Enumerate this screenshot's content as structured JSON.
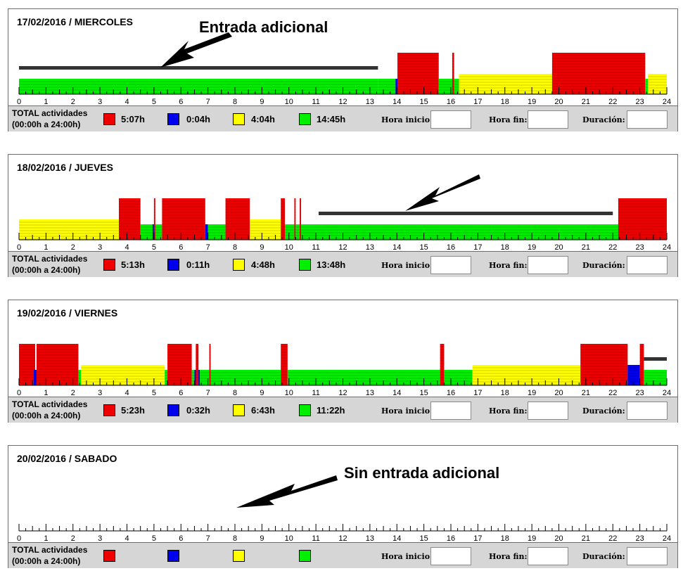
{
  "colors": {
    "red": "#ee0000",
    "blue": "#0000ee",
    "yellow": "#ffff00",
    "green": "#00ee00",
    "dark": "#333333"
  },
  "labels": {
    "total": "TOTAL actividades",
    "range": "(00:00h a 24:00h)",
    "hora_inicio": "Hora inicio:",
    "hora_fin": "Hora fin:",
    "duracion": "Duración:"
  },
  "axis_ticks": [
    "0",
    "1",
    "2",
    "3",
    "4",
    "5",
    "6",
    "7",
    "8",
    "9",
    "10",
    "11",
    "12",
    "13",
    "14",
    "15",
    "16",
    "17",
    "18",
    "19",
    "20",
    "21",
    "22",
    "23",
    "24"
  ],
  "days": [
    {
      "date": "17/02/2016 / MIERCOLES",
      "totals": {
        "red": "5:07h",
        "blue": "0:04h",
        "yellow": "4:04h",
        "green": "14:45h"
      },
      "annotation": "Entrada adicional",
      "segments": [
        {
          "color": "green",
          "start": 0,
          "end": 13.3,
          "level": "low"
        },
        {
          "color": "green",
          "start": 13.3,
          "end": 14,
          "level": "low"
        },
        {
          "color": "blue",
          "start": 13.95,
          "end": 14.02,
          "level": "low"
        },
        {
          "color": "red",
          "start": 14.02,
          "end": 15.55,
          "level": "high"
        },
        {
          "color": "green",
          "start": 15.55,
          "end": 16.05,
          "level": "low"
        },
        {
          "color": "red",
          "start": 16.05,
          "end": 16.12,
          "level": "high"
        },
        {
          "color": "green",
          "start": 16.12,
          "end": 16.3,
          "level": "low"
        },
        {
          "color": "yellow",
          "start": 16.3,
          "end": 19.75,
          "level": "mid"
        },
        {
          "color": "red",
          "start": 19.75,
          "end": 23.2,
          "level": "high"
        },
        {
          "color": "green",
          "start": 23.2,
          "end": 23.3,
          "level": "low"
        },
        {
          "color": "yellow",
          "start": 23.3,
          "end": 24,
          "level": "mid"
        }
      ],
      "extra_bar": {
        "start": 0,
        "end": 13.3
      }
    },
    {
      "date": "18/02/2016 / JUEVES",
      "totals": {
        "red": "5:13h",
        "blue": "0:11h",
        "yellow": "4:48h",
        "green": "13:48h"
      },
      "annotation": "",
      "segments": [
        {
          "color": "yellow",
          "start": 0,
          "end": 3.7,
          "level": "mid"
        },
        {
          "color": "red",
          "start": 3.7,
          "end": 4.5,
          "level": "high"
        },
        {
          "color": "green",
          "start": 4.5,
          "end": 5.3,
          "level": "low"
        },
        {
          "color": "blue",
          "start": 4.95,
          "end": 5.0,
          "level": "low"
        },
        {
          "color": "red",
          "start": 5.0,
          "end": 5.05,
          "level": "high"
        },
        {
          "color": "red",
          "start": 5.3,
          "end": 6.9,
          "level": "high"
        },
        {
          "color": "blue",
          "start": 6.9,
          "end": 7.0,
          "level": "low"
        },
        {
          "color": "green",
          "start": 7.0,
          "end": 7.65,
          "level": "low"
        },
        {
          "color": "red",
          "start": 7.65,
          "end": 8.55,
          "level": "high"
        },
        {
          "color": "yellow",
          "start": 8.55,
          "end": 9.7,
          "level": "mid"
        },
        {
          "color": "red",
          "start": 9.7,
          "end": 9.85,
          "level": "high"
        },
        {
          "color": "green",
          "start": 9.85,
          "end": 10.2,
          "level": "low"
        },
        {
          "color": "red",
          "start": 10.2,
          "end": 10.25,
          "level": "high"
        },
        {
          "color": "green",
          "start": 10.25,
          "end": 10.4,
          "level": "low"
        },
        {
          "color": "red",
          "start": 10.4,
          "end": 10.45,
          "level": "high"
        },
        {
          "color": "green",
          "start": 10.45,
          "end": 22.2,
          "level": "low"
        },
        {
          "color": "red",
          "start": 22.2,
          "end": 24,
          "level": "high"
        }
      ],
      "extra_bar": {
        "start": 11.1,
        "end": 22.0
      }
    },
    {
      "date": "19/02/2016 / VIERNES",
      "totals": {
        "red": "5:23h",
        "blue": "0:32h",
        "yellow": "6:43h",
        "green": "11:22h"
      },
      "annotation": "",
      "segments": [
        {
          "color": "red",
          "start": 0,
          "end": 0.6,
          "level": "high"
        },
        {
          "color": "blue",
          "start": 0.55,
          "end": 0.65,
          "level": "low"
        },
        {
          "color": "red",
          "start": 0.65,
          "end": 2.2,
          "level": "high"
        },
        {
          "color": "green",
          "start": 2.2,
          "end": 2.3,
          "level": "low"
        },
        {
          "color": "yellow",
          "start": 2.3,
          "end": 5.4,
          "level": "mid"
        },
        {
          "color": "green",
          "start": 5.4,
          "end": 5.5,
          "level": "low"
        },
        {
          "color": "red",
          "start": 5.5,
          "end": 6.4,
          "level": "high"
        },
        {
          "color": "green",
          "start": 6.4,
          "end": 6.5,
          "level": "low"
        },
        {
          "color": "blue",
          "start": 6.5,
          "end": 6.7,
          "level": "low"
        },
        {
          "color": "red",
          "start": 6.55,
          "end": 6.65,
          "level": "high"
        },
        {
          "color": "green",
          "start": 6.7,
          "end": 7.05,
          "level": "low"
        },
        {
          "color": "red",
          "start": 7.05,
          "end": 7.1,
          "level": "high"
        },
        {
          "color": "green",
          "start": 7.1,
          "end": 9.7,
          "level": "low"
        },
        {
          "color": "red",
          "start": 9.7,
          "end": 9.95,
          "level": "high"
        },
        {
          "color": "green",
          "start": 9.95,
          "end": 15.6,
          "level": "low"
        },
        {
          "color": "red",
          "start": 15.6,
          "end": 15.75,
          "level": "high"
        },
        {
          "color": "green",
          "start": 15.75,
          "end": 16.8,
          "level": "low"
        },
        {
          "color": "yellow",
          "start": 16.8,
          "end": 20.8,
          "level": "mid"
        },
        {
          "color": "red",
          "start": 20.8,
          "end": 22.55,
          "level": "high"
        },
        {
          "color": "blue",
          "start": 22.55,
          "end": 23.0,
          "level": "mid"
        },
        {
          "color": "red",
          "start": 23.0,
          "end": 23.15,
          "level": "high"
        },
        {
          "color": "green",
          "start": 23.15,
          "end": 24,
          "level": "low"
        }
      ],
      "extra_bar": {
        "start": 23.15,
        "end": 24
      }
    },
    {
      "date": "20/02/2016 / SABADO",
      "totals": {
        "red": "",
        "blue": "",
        "yellow": "",
        "green": ""
      },
      "annotation": "Sin entrada adicional",
      "segments": [],
      "extra_bar": null
    }
  ]
}
